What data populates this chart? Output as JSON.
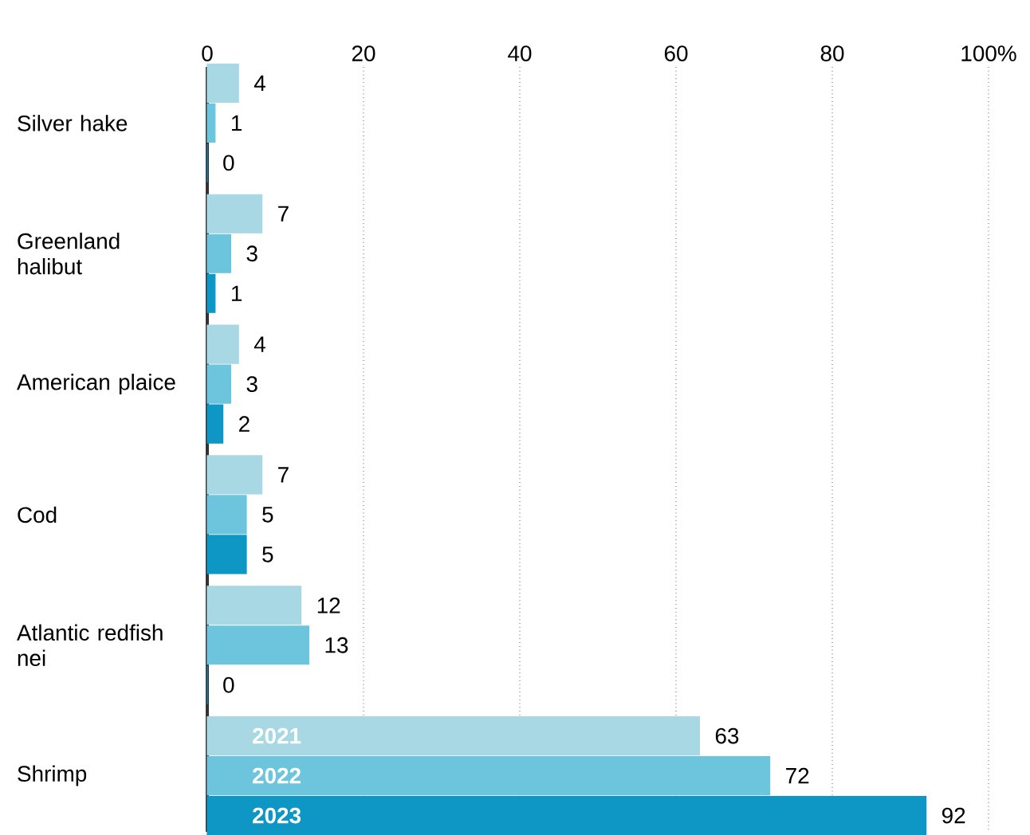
{
  "chart_data": {
    "type": "bar",
    "orientation": "horizontal",
    "categories": [
      "Silver hake",
      "Greenland halibut",
      "American plaice",
      "Cod",
      "Atlantic redfish nei",
      "Shrimp"
    ],
    "series": [
      {
        "name": "2021",
        "color": "#a8d8e4",
        "values": [
          4,
          7,
          4,
          7,
          12,
          63
        ]
      },
      {
        "name": "2022",
        "color": "#6cc5dc",
        "values": [
          1,
          3,
          3,
          5,
          13,
          72
        ]
      },
      {
        "name": "2023",
        "color": "#0e96c4",
        "values": [
          0,
          1,
          2,
          5,
          0,
          92
        ]
      }
    ],
    "xlim": [
      0,
      100
    ],
    "xticks": [
      0,
      20,
      40,
      60,
      80,
      {
        "value": 100,
        "label": "100%"
      }
    ],
    "grid": "x",
    "data_labels": true
  }
}
